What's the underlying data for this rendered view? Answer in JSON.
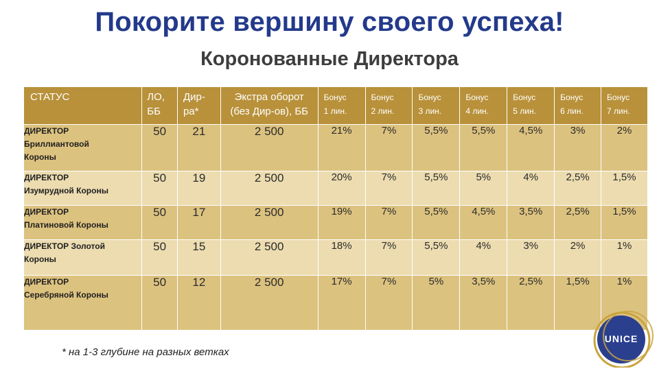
{
  "header": {
    "title": "Покорите вершину своего успеха!",
    "subtitle": "Коронованные Директора"
  },
  "table": {
    "columns": [
      {
        "line1": "СТАТУС",
        "line2": ""
      },
      {
        "line1": "ЛО,",
        "line2": "ББ"
      },
      {
        "line1": "Дир-",
        "line2": "ра*"
      },
      {
        "line1": "Экстра оборот",
        "line2": "(без Дир-ов), ББ"
      },
      {
        "line1": "Бонус",
        "line2": "1 лин."
      },
      {
        "line1": "Бонус",
        "line2": "2 лин."
      },
      {
        "line1": "Бонус",
        "line2": "3 лин."
      },
      {
        "line1": "Бонус",
        "line2": "4 лин."
      },
      {
        "line1": "Бонус",
        "line2": "5 лин."
      },
      {
        "line1": "Бонус",
        "line2": "6 лин."
      },
      {
        "line1": "Бонус",
        "line2": "7 лин."
      }
    ],
    "rows": [
      {
        "status": [
          "ДИРЕКТОР",
          "Бриллиантовой",
          "Короны"
        ],
        "lo": "50",
        "dir": "21",
        "extra": "2 500",
        "bonus": [
          "21%",
          "7%",
          "5,5%",
          "5,5%",
          "4,5%",
          "3%",
          "2%"
        ]
      },
      {
        "status": [
          "ДИРЕКТОР",
          "Изумрудной Короны",
          ""
        ],
        "lo": "50",
        "dir": "19",
        "extra": "2 500",
        "bonus": [
          "20%",
          "7%",
          "5,5%",
          "5%",
          "4%",
          "2,5%",
          "1,5%"
        ]
      },
      {
        "status": [
          "ДИРЕКТОР",
          "Платиновой Короны",
          ""
        ],
        "lo": "50",
        "dir": "17",
        "extra": "2 500",
        "bonus": [
          "19%",
          "7%",
          "5,5%",
          "4,5%",
          "3,5%",
          "2,5%",
          "1,5%"
        ]
      },
      {
        "status": [
          "ДИРЕКТОР Золотой",
          "Короны",
          ""
        ],
        "lo": "50",
        "dir": "15",
        "extra": "2 500",
        "bonus": [
          "18%",
          "7%",
          "5,5%",
          "4%",
          "3%",
          "2%",
          "1%"
        ]
      },
      {
        "status": [
          "ДИРЕКТОР",
          "Серебряной Короны",
          ""
        ],
        "lo": "50",
        "dir": "12",
        "extra": "2 500",
        "bonus": [
          "17%",
          "7%",
          "5%",
          "3,5%",
          "2,5%",
          "1,5%",
          "1%"
        ]
      }
    ]
  },
  "footnote": "* на 1-3 глубине на разных ветках",
  "logo": {
    "text": "UNICE"
  },
  "colors": {
    "title": "#233a8b",
    "header_bg": "#b8913a",
    "row_dark": "#dcc27f",
    "row_light": "#ecdcb0",
    "logo_blue": "#2b3f8f",
    "logo_gold": "#c9a43f"
  }
}
